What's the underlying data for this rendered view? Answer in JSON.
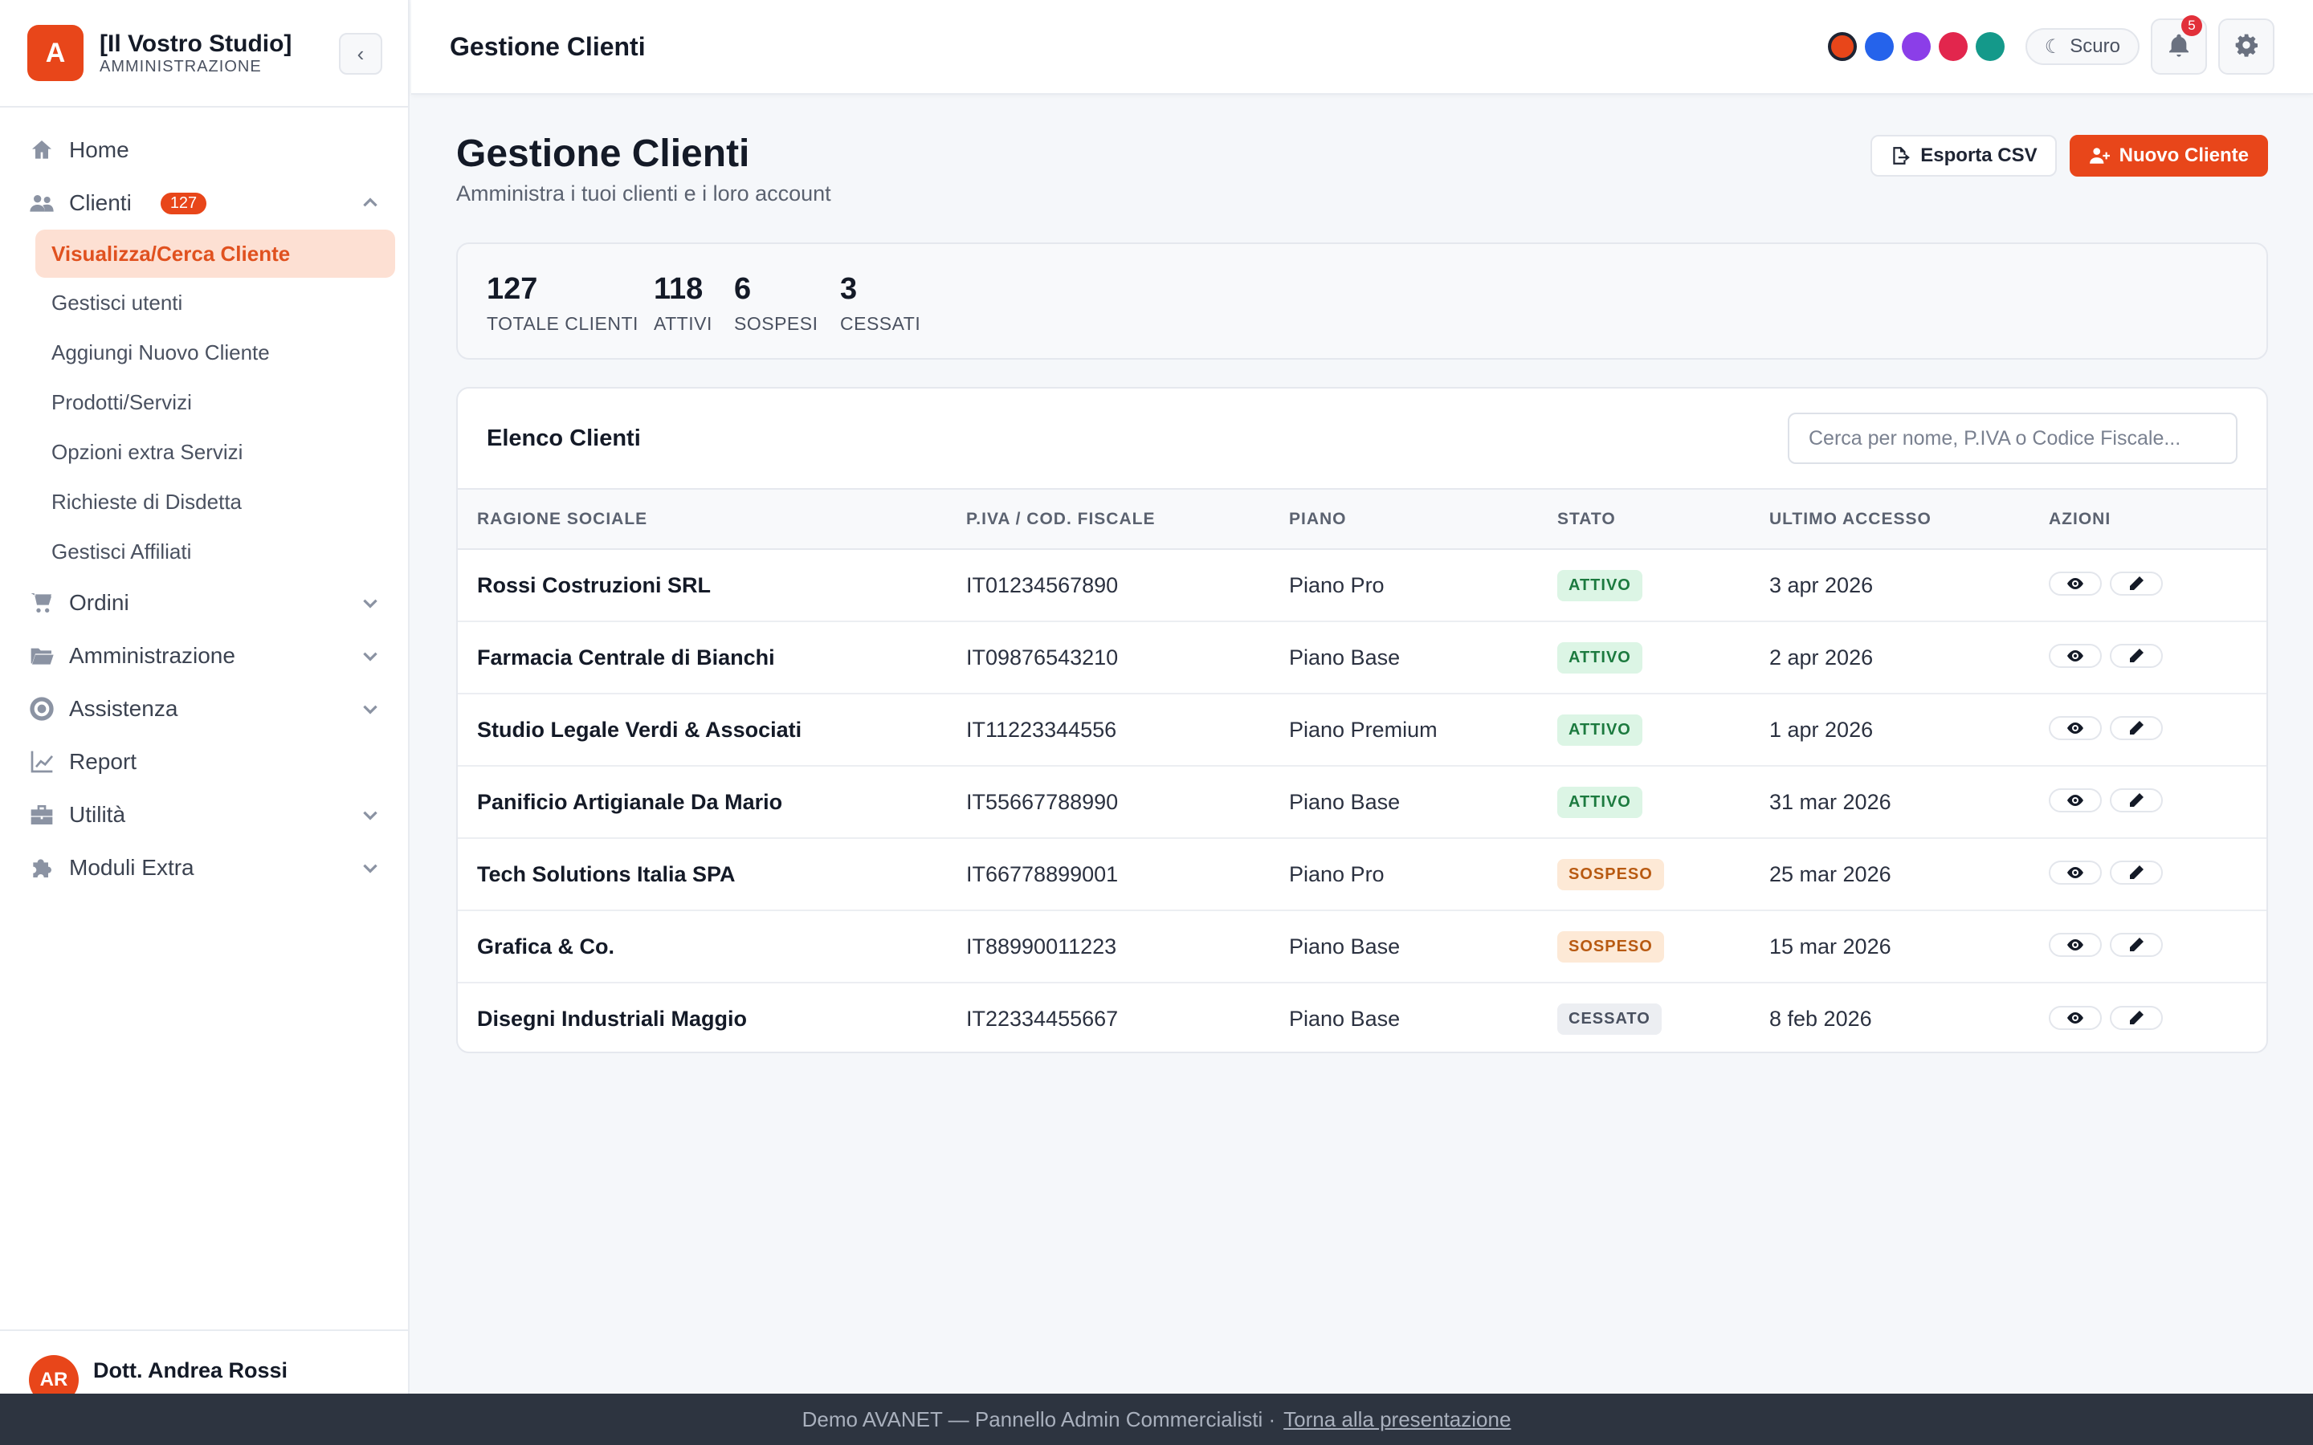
{
  "brand": {
    "logo_letter": "A",
    "name": "[Il Vostro Studio]",
    "subtitle": "AMMINISTRAZIONE"
  },
  "sidebar": {
    "items": [
      {
        "label": "Home",
        "icon": "home-icon"
      },
      {
        "label": "Clienti",
        "icon": "users-icon",
        "badge": "127",
        "expanded": true
      },
      {
        "label": "Ordini",
        "icon": "cart-icon"
      },
      {
        "label": "Amministrazione",
        "icon": "folder-icon"
      },
      {
        "label": "Assistenza",
        "icon": "lifebuoy-icon"
      },
      {
        "label": "Report",
        "icon": "chart-line-icon"
      },
      {
        "label": "Utilità",
        "icon": "toolbox-icon"
      },
      {
        "label": "Moduli Extra",
        "icon": "puzzle-icon"
      }
    ],
    "clienti_sub": [
      "Visualizza/Cerca Cliente",
      "Gestisci utenti",
      "Aggiungi Nuovo Cliente",
      "Prodotti/Servizi",
      "Opzioni extra Servizi",
      "Richieste di Disdetta",
      "Gestisci Affiliati"
    ],
    "active_sub": "Visualizza/Cerca Cliente"
  },
  "user": {
    "initials": "AR",
    "name": "Dott. Andrea Rossi"
  },
  "topbar": {
    "title": "Gestione Clienti",
    "theme_label": "Scuro",
    "notifications": "5",
    "color_swatches": [
      "#e8461a",
      "#2563eb",
      "#8b3ee8",
      "#e2264d",
      "#14998a"
    ]
  },
  "page": {
    "title": "Gestione Clienti",
    "subtitle": "Amministra i tuoi clienti e i loro account",
    "export_label": "Esporta CSV",
    "new_label": "Nuovo Cliente"
  },
  "stats": [
    {
      "value": "127",
      "label": "TOTALE CLIENTI"
    },
    {
      "value": "118",
      "label": "ATTIVI"
    },
    {
      "value": "6",
      "label": "SOSPESI"
    },
    {
      "value": "3",
      "label": "CESSATI"
    }
  ],
  "list": {
    "title": "Elenco Clienti",
    "search_placeholder": "Cerca per nome, P.IVA o Codice Fiscale...",
    "columns": [
      "RAGIONE SOCIALE",
      "P.IVA / COD. FISCALE",
      "PIANO",
      "STATO",
      "ULTIMO ACCESSO",
      "AZIONI"
    ],
    "rows": [
      {
        "name": "Rossi Costruzioni SRL",
        "piva": "IT01234567890",
        "plan": "Piano Pro",
        "status": "ATTIVO",
        "last": "3 apr 2026"
      },
      {
        "name": "Farmacia Centrale di Bianchi",
        "piva": "IT09876543210",
        "plan": "Piano Base",
        "status": "ATTIVO",
        "last": "2 apr 2026"
      },
      {
        "name": "Studio Legale Verdi & Associati",
        "piva": "IT11223344556",
        "plan": "Piano Premium",
        "status": "ATTIVO",
        "last": "1 apr 2026"
      },
      {
        "name": "Panificio Artigianale Da Mario",
        "piva": "IT55667788990",
        "plan": "Piano Base",
        "status": "ATTIVO",
        "last": "31 mar 2026"
      },
      {
        "name": "Tech Solutions Italia SPA",
        "piva": "IT66778899001",
        "plan": "Piano Pro",
        "status": "SOSPESO",
        "last": "25 mar 2026"
      },
      {
        "name": "Grafica & Co.",
        "piva": "IT88990011223",
        "plan": "Piano Base",
        "status": "SOSPESO",
        "last": "15 mar 2026"
      },
      {
        "name": "Disegni Industriali Maggio",
        "piva": "IT22334455667",
        "plan": "Piano Base",
        "status": "CESSATO",
        "last": "8 feb 2026"
      }
    ]
  },
  "footer": {
    "text": "Demo AVANET — Pannello Admin Commercialisti ·",
    "link": "Torna alla presentazione"
  }
}
